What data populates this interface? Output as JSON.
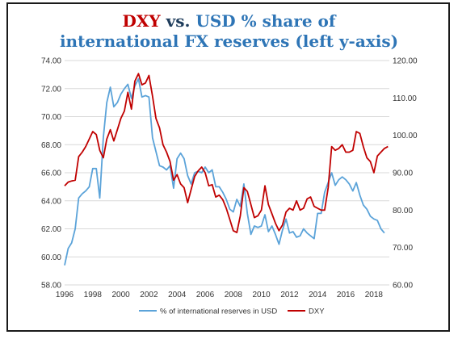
{
  "title": {
    "part1": "DXY",
    "part2": " vs. ",
    "part3": "USD % share of",
    "line2": "international FX reserves (left y-axis)"
  },
  "colors": {
    "usd_share": "#5ba3d9",
    "dxy": "#c00000",
    "title_red": "#c00000",
    "title_blue": "#2e75b6",
    "grid": "#d9d9d9"
  },
  "chart_data": {
    "type": "line",
    "title": "DXY vs. USD % share of international FX reserves (left y-axis)",
    "xlabel": "",
    "ylabel": "",
    "xlim": [
      1996,
      2019.1
    ],
    "ylim": [
      58,
      74
    ],
    "y2lim": [
      60,
      120
    ],
    "x_ticks": [
      "1996",
      "1998",
      "2000",
      "2002",
      "2004",
      "2006",
      "2008",
      "2010",
      "2012",
      "2014",
      "2016",
      "2018"
    ],
    "y_ticks": [
      "58.00",
      "60.00",
      "62.00",
      "64.00",
      "66.00",
      "68.00",
      "70.00",
      "72.00",
      "74.00"
    ],
    "y2_ticks": [
      "60.00",
      "70.00",
      "80.00",
      "90.00",
      "100.00",
      "110.00",
      "120.00"
    ],
    "grid": "horizontal",
    "legend_position": "bottom",
    "series": [
      {
        "name": "% of international reserves in USD",
        "axis": "left",
        "x": [
          1996,
          1996.25,
          1996.5,
          1996.75,
          1997,
          1997.25,
          1997.5,
          1997.75,
          1998,
          1998.25,
          1998.5,
          1998.75,
          1999,
          1999.25,
          1999.5,
          1999.75,
          2000,
          2000.25,
          2000.5,
          2000.75,
          2001,
          2001.25,
          2001.5,
          2001.75,
          2002,
          2002.25,
          2002.5,
          2002.75,
          2003,
          2003.25,
          2003.5,
          2003.75,
          2004,
          2004.25,
          2004.5,
          2004.75,
          2005,
          2005.25,
          2005.5,
          2005.75,
          2006,
          2006.25,
          2006.5,
          2006.75,
          2007,
          2007.25,
          2007.5,
          2007.75,
          2008,
          2008.25,
          2008.5,
          2008.75,
          2009,
          2009.25,
          2009.5,
          2009.75,
          2010,
          2010.25,
          2010.5,
          2010.75,
          2011,
          2011.25,
          2011.5,
          2011.75,
          2012,
          2012.25,
          2012.5,
          2012.75,
          2013,
          2013.25,
          2013.5,
          2013.75,
          2014,
          2014.25,
          2014.5,
          2014.75,
          2015,
          2015.25,
          2015.5,
          2015.75,
          2016,
          2016.25,
          2016.5,
          2016.75,
          2017,
          2017.25,
          2017.5,
          2017.75,
          2018,
          2018.25,
          2018.5,
          2018.75
        ],
        "values": [
          59.4,
          60.6,
          61.0,
          62.0,
          64.2,
          64.5,
          64.7,
          65.0,
          66.3,
          66.3,
          64.2,
          68.5,
          71.0,
          72.1,
          70.7,
          71.0,
          71.6,
          72.0,
          72.3,
          71.3,
          72.2,
          72.7,
          71.4,
          71.5,
          71.4,
          68.5,
          67.5,
          66.5,
          66.4,
          66.2,
          66.5,
          64.9,
          67.0,
          67.4,
          67.0,
          65.8,
          65.2,
          66.0,
          66.1,
          66.0,
          66.4,
          66.0,
          66.2,
          65.0,
          65.0,
          64.6,
          64.1,
          63.4,
          63.2,
          64.1,
          63.6,
          65.2,
          63.1,
          61.6,
          62.2,
          62.1,
          62.2,
          63.0,
          61.8,
          62.2,
          61.6,
          60.9,
          61.9,
          62.7,
          61.7,
          61.8,
          61.4,
          61.5,
          62.0,
          61.7,
          61.5,
          61.3,
          63.1,
          63.1,
          64.6,
          65.3,
          66.0,
          65.1,
          65.5,
          65.7,
          65.5,
          65.2,
          64.7,
          65.3,
          64.4,
          63.7,
          63.4,
          62.9,
          62.7,
          62.6,
          62.0,
          61.7
        ]
      },
      {
        "name": "DXY",
        "axis": "right",
        "x": [
          1996,
          1996.25,
          1996.5,
          1996.75,
          1997,
          1997.25,
          1997.5,
          1997.75,
          1998,
          1998.25,
          1998.5,
          1998.75,
          1999,
          1999.25,
          1999.5,
          1999.75,
          2000,
          2000.25,
          2000.5,
          2000.75,
          2001,
          2001.25,
          2001.5,
          2001.75,
          2002,
          2002.25,
          2002.5,
          2002.75,
          2003,
          2003.25,
          2003.5,
          2003.75,
          2004,
          2004.25,
          2004.5,
          2004.75,
          2005,
          2005.25,
          2005.5,
          2005.75,
          2006,
          2006.25,
          2006.5,
          2006.75,
          2007,
          2007.25,
          2007.5,
          2007.75,
          2008,
          2008.25,
          2008.5,
          2008.75,
          2009,
          2009.25,
          2009.5,
          2009.75,
          2010,
          2010.25,
          2010.5,
          2010.75,
          2011,
          2011.25,
          2011.5,
          2011.75,
          2012,
          2012.25,
          2012.5,
          2012.75,
          2013,
          2013.25,
          2013.5,
          2013.75,
          2014,
          2014.25,
          2014.5,
          2014.75,
          2015,
          2015.25,
          2015.5,
          2015.75,
          2016,
          2016.25,
          2016.5,
          2016.75,
          2017,
          2017.25,
          2017.5,
          2017.75,
          2018,
          2018.25,
          2018.5,
          2018.75,
          2019
        ],
        "values": [
          86.5,
          87.5,
          87.8,
          88.0,
          94.3,
          95.5,
          97.0,
          99.0,
          101.0,
          100.2,
          96.0,
          94.0,
          99.0,
          101.5,
          98.5,
          101.5,
          104.5,
          106.5,
          111.5,
          107.0,
          114.5,
          116.5,
          113.5,
          114.0,
          116.0,
          110.5,
          104.5,
          102.0,
          97.5,
          95.5,
          93.0,
          88.0,
          89.5,
          87.0,
          86.0,
          82.0,
          85.5,
          89.0,
          90.5,
          91.5,
          90.0,
          86.5,
          86.8,
          83.5,
          84.0,
          82.8,
          80.5,
          77.5,
          74.5,
          74.0,
          78.5,
          86.0,
          85.0,
          81.5,
          78.0,
          78.5,
          80.0,
          86.5,
          81.5,
          79.0,
          76.5,
          74.5,
          76.0,
          79.5,
          80.5,
          80.0,
          82.5,
          80.0,
          80.5,
          83.0,
          83.5,
          81.0,
          80.5,
          80.0,
          80.0,
          86.0,
          97.0,
          96.0,
          96.5,
          97.5,
          95.5,
          95.5,
          96.0,
          101.0,
          100.5,
          97.0,
          94.0,
          93.0,
          90.0,
          94.5,
          95.5,
          96.5,
          97.0
        ]
      }
    ]
  }
}
